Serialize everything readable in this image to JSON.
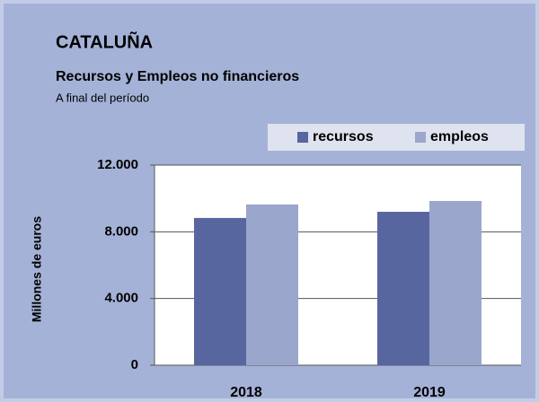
{
  "chart_data": {
    "type": "bar",
    "title": "CATALUÑA",
    "subtitle": "Recursos y Empleos no financieros",
    "note": "A final del período",
    "ylabel": "Millones de euros",
    "categories": [
      "2018",
      "2019"
    ],
    "series": [
      {
        "name": "recursos",
        "color": "#5866a0",
        "values": [
          8830,
          9200
        ]
      },
      {
        "name": "empleos",
        "color": "#9aa6cc",
        "values": [
          9640,
          9850
        ]
      }
    ],
    "ylim": [
      0,
      12000
    ],
    "yticks": [
      0,
      {
        "value": 4000,
        "label": "4.000"
      },
      {
        "value": 8000,
        "label": "8.000"
      },
      {
        "value": 12000,
        "label": "12.000"
      }
    ],
    "grid": true,
    "legend": "top-right"
  }
}
